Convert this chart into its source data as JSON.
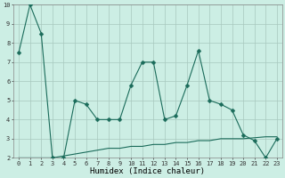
{
  "x": [
    0,
    1,
    2,
    3,
    4,
    5,
    6,
    7,
    8,
    9,
    10,
    11,
    12,
    13,
    14,
    15,
    16,
    17,
    18,
    19,
    20,
    21,
    22,
    23
  ],
  "line1": [
    7.5,
    10.0,
    8.5,
    2.0,
    2.0,
    5.0,
    4.8,
    4.0,
    4.0,
    4.0,
    5.8,
    7.0,
    7.0,
    4.0,
    4.2,
    5.8,
    7.6,
    5.0,
    4.8,
    4.5,
    3.2,
    2.9,
    2.0,
    3.0
  ],
  "line2": [
    2.0,
    2.0,
    2.0,
    2.0,
    2.1,
    2.2,
    2.3,
    2.4,
    2.5,
    2.5,
    2.6,
    2.6,
    2.7,
    2.7,
    2.8,
    2.8,
    2.9,
    2.9,
    3.0,
    3.0,
    3.0,
    3.05,
    3.1,
    3.1
  ],
  "line_color": "#1a6b5a",
  "bg_color": "#cceee4",
  "grid_color": "#a8c8be",
  "xlabel": "Humidex (Indice chaleur)",
  "ylim": [
    2,
    10
  ],
  "xlim": [
    -0.5,
    23.5
  ],
  "yticks": [
    2,
    3,
    4,
    5,
    6,
    7,
    8,
    9,
    10
  ],
  "xticks": [
    0,
    1,
    2,
    3,
    4,
    5,
    6,
    7,
    8,
    9,
    10,
    11,
    12,
    13,
    14,
    15,
    16,
    17,
    18,
    19,
    20,
    21,
    22,
    23
  ],
  "tick_fontsize": 5.0,
  "xlabel_fontsize": 6.5,
  "marker_size": 2.5,
  "line_width": 0.8
}
